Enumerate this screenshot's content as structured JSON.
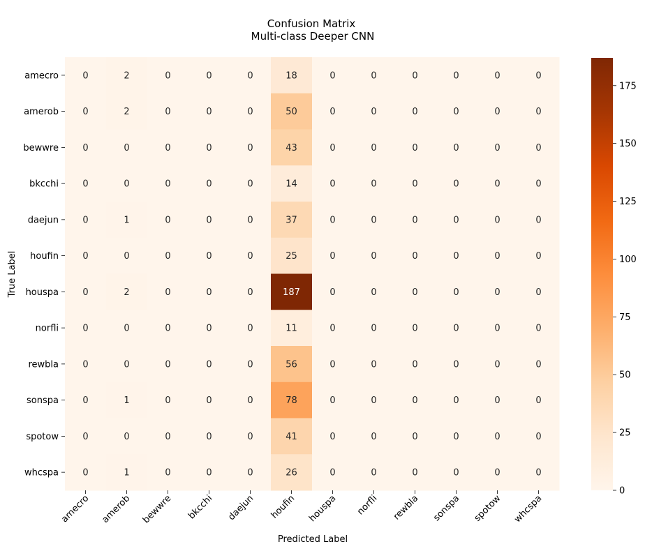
{
  "chart_data": {
    "type": "heatmap",
    "title": "Confusion Matrix",
    "subtitle": "Multi-class Deeper CNN",
    "xlabel": "Predicted Label",
    "ylabel": "True Label",
    "x_categories": [
      "amecro",
      "amerob",
      "bewwre",
      "bkcchi",
      "daejun",
      "houfin",
      "houspa",
      "norfli",
      "rewbla",
      "sonspa",
      "spotow",
      "whcspa"
    ],
    "y_categories": [
      "amecro",
      "amerob",
      "bewwre",
      "bkcchi",
      "daejun",
      "houfin",
      "houspa",
      "norfli",
      "rewbla",
      "sonspa",
      "spotow",
      "whcspa"
    ],
    "values": [
      [
        0,
        2,
        0,
        0,
        0,
        18,
        0,
        0,
        0,
        0,
        0,
        0
      ],
      [
        0,
        2,
        0,
        0,
        0,
        50,
        0,
        0,
        0,
        0,
        0,
        0
      ],
      [
        0,
        0,
        0,
        0,
        0,
        43,
        0,
        0,
        0,
        0,
        0,
        0
      ],
      [
        0,
        0,
        0,
        0,
        0,
        14,
        0,
        0,
        0,
        0,
        0,
        0
      ],
      [
        0,
        1,
        0,
        0,
        0,
        37,
        0,
        0,
        0,
        0,
        0,
        0
      ],
      [
        0,
        0,
        0,
        0,
        0,
        25,
        0,
        0,
        0,
        0,
        0,
        0
      ],
      [
        0,
        2,
        0,
        0,
        0,
        187,
        0,
        0,
        0,
        0,
        0,
        0
      ],
      [
        0,
        0,
        0,
        0,
        0,
        11,
        0,
        0,
        0,
        0,
        0,
        0
      ],
      [
        0,
        0,
        0,
        0,
        0,
        56,
        0,
        0,
        0,
        0,
        0,
        0
      ],
      [
        0,
        1,
        0,
        0,
        0,
        78,
        0,
        0,
        0,
        0,
        0,
        0
      ],
      [
        0,
        0,
        0,
        0,
        0,
        41,
        0,
        0,
        0,
        0,
        0,
        0
      ],
      [
        0,
        1,
        0,
        0,
        0,
        26,
        0,
        0,
        0,
        0,
        0,
        0
      ]
    ],
    "colorbar": {
      "range": [
        0,
        187
      ],
      "ticks": [
        0,
        25,
        50,
        75,
        100,
        125,
        150,
        175
      ]
    },
    "colormap": "Oranges",
    "colors": [
      "#fff5eb",
      "#fee6ce",
      "#fdd0a2",
      "#fdae6b",
      "#fd8d3c",
      "#f16913",
      "#d94801",
      "#a63603",
      "#7f2704"
    ],
    "annotations": "cell counts shown"
  }
}
